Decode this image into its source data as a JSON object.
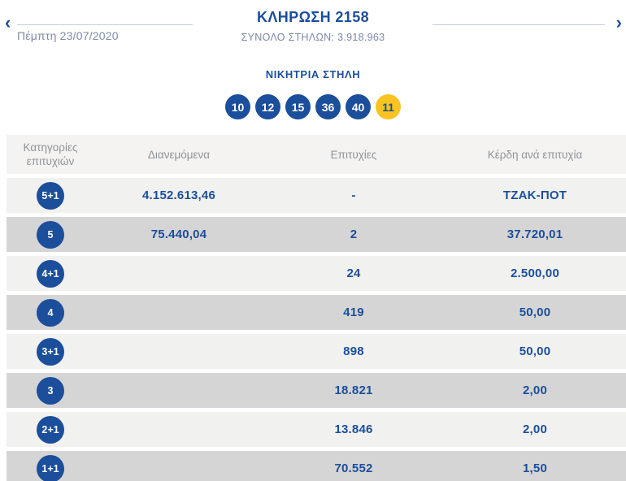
{
  "colors": {
    "primary_blue": "#1b4e9b",
    "bonus_yellow": "#fac321",
    "row_light": "#f1f1ef",
    "row_dark": "#d5d5d5",
    "header_text_gray": "#8f9399",
    "date_text_gray_blue": "#7e8ba5"
  },
  "header": {
    "prev_icon": "‹",
    "next_icon": "›",
    "date": "Πέμπτη 23/07/2020",
    "title": "ΚΛΗΡΩΣΗ 2158",
    "total_columns": "ΣΥΝΟΛΟ ΣΤΗΛΩΝ: 3.918.963"
  },
  "winning_column": {
    "heading": "ΝΙΚΗΤΡΙΑ ΣΤΗΛΗ",
    "numbers": [
      "10",
      "12",
      "15",
      "36",
      "40"
    ],
    "bonus_number": "11"
  },
  "results_table": {
    "columns": [
      "Κατηγορίες επιτυχιών",
      "Διανεμόμενα",
      "Επιτυχίες",
      "Κέρδη ανά επιτυχία"
    ],
    "rows": [
      {
        "category": "5+1",
        "distributed": "4.152.613,46",
        "winners": "-",
        "prize": "ΤΖΑΚ-ΠΟΤ"
      },
      {
        "category": "5",
        "distributed": "75.440,04",
        "winners": "2",
        "prize": "37.720,01"
      },
      {
        "category": "4+1",
        "distributed": "",
        "winners": "24",
        "prize": "2.500,00"
      },
      {
        "category": "4",
        "distributed": "",
        "winners": "419",
        "prize": "50,00"
      },
      {
        "category": "3+1",
        "distributed": "",
        "winners": "898",
        "prize": "50,00"
      },
      {
        "category": "3",
        "distributed": "",
        "winners": "18.821",
        "prize": "2,00"
      },
      {
        "category": "2+1",
        "distributed": "",
        "winners": "13.846",
        "prize": "2,00"
      },
      {
        "category": "1+1",
        "distributed": "",
        "winners": "70.552",
        "prize": "1,50"
      }
    ]
  }
}
